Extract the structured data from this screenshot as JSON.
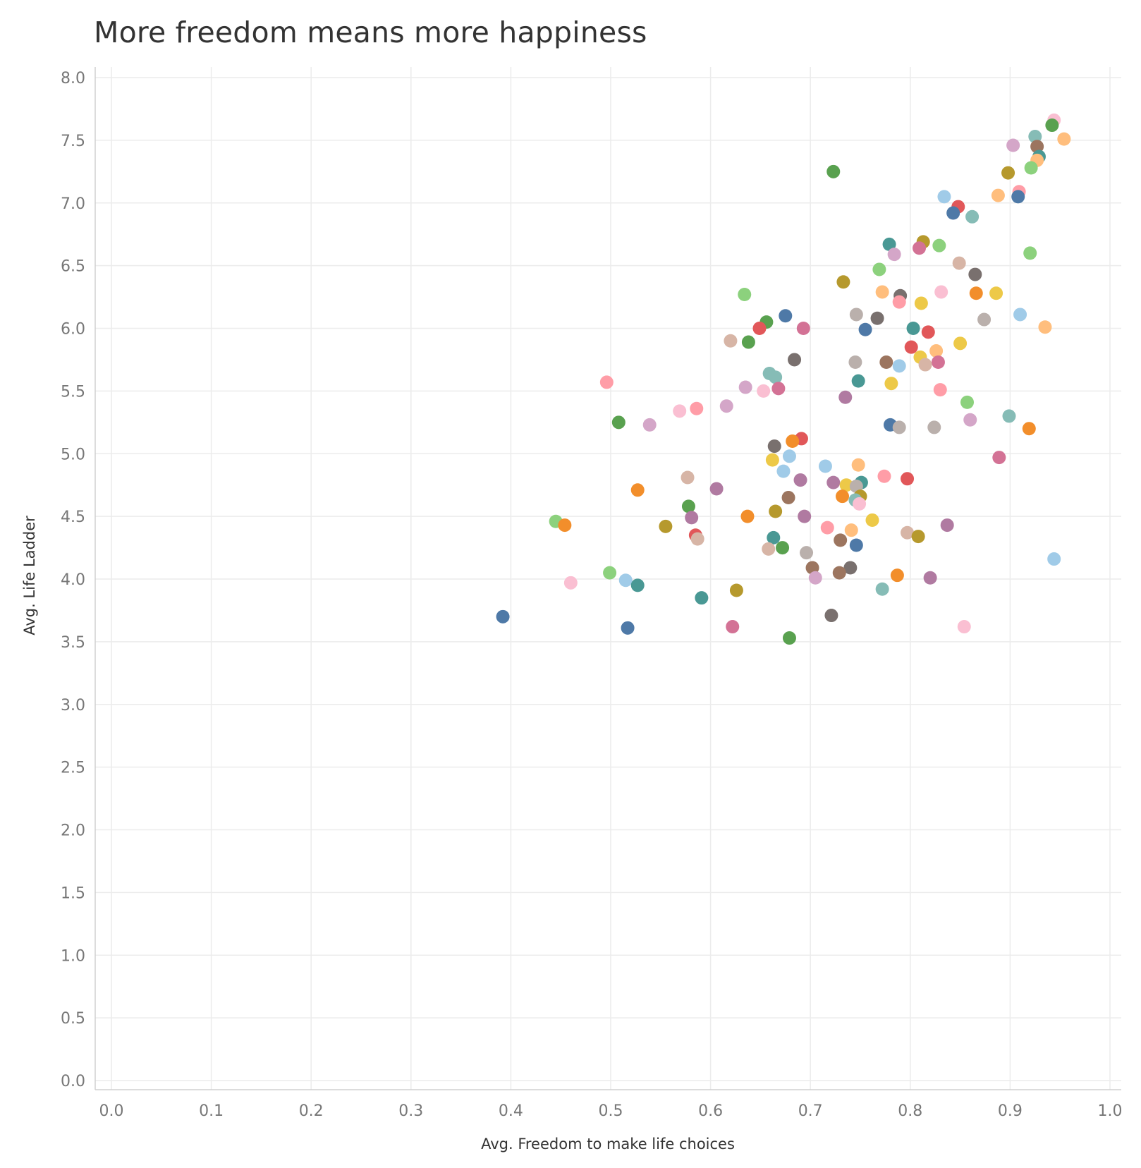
{
  "chart_data": {
    "type": "scatter",
    "title": "More freedom means more happiness",
    "xlabel": "Avg. Freedom to make life choices",
    "ylabel": "Avg. Life Ladder",
    "xlim": [
      0.0,
      1.0
    ],
    "ylim": [
      0.0,
      8.0
    ],
    "x_ticks": [
      "0.0",
      "0.1",
      "0.2",
      "0.3",
      "0.4",
      "0.5",
      "0.6",
      "0.7",
      "0.8",
      "0.9",
      "1.0"
    ],
    "y_ticks": [
      "0.0",
      "0.5",
      "1.0",
      "1.5",
      "2.0",
      "2.5",
      "3.0",
      "3.5",
      "4.0",
      "4.5",
      "5.0",
      "5.5",
      "6.0",
      "6.5",
      "7.0",
      "7.5",
      "8.0"
    ],
    "grid": true,
    "palette": [
      "#4e79a7",
      "#f28e2b",
      "#e15759",
      "#76b7b2",
      "#59a14f",
      "#edc948",
      "#b07aa1",
      "#ff9da7",
      "#9c755f",
      "#bab0ac",
      "#a0cbe8",
      "#ffbe7d",
      "#8cd17d",
      "#b6992d",
      "#499894",
      "#86bcb6",
      "#d37295",
      "#fabfd2",
      "#d4a6c8",
      "#79706e",
      "#d7b5a6"
    ],
    "points": [
      {
        "x": 0.944,
        "y": 7.66,
        "color": "#fabfd2"
      },
      {
        "x": 0.942,
        "y": 7.62,
        "color": "#59a14f"
      },
      {
        "x": 0.925,
        "y": 7.53,
        "color": "#86bcb6"
      },
      {
        "x": 0.954,
        "y": 7.51,
        "color": "#ffbe7d"
      },
      {
        "x": 0.903,
        "y": 7.46,
        "color": "#d4a6c8"
      },
      {
        "x": 0.927,
        "y": 7.45,
        "color": "#9c755f"
      },
      {
        "x": 0.929,
        "y": 7.37,
        "color": "#499894"
      },
      {
        "x": 0.927,
        "y": 7.34,
        "color": "#ffbe7d"
      },
      {
        "x": 0.921,
        "y": 7.28,
        "color": "#8cd17d"
      },
      {
        "x": 0.723,
        "y": 7.25,
        "color": "#59a14f"
      },
      {
        "x": 0.898,
        "y": 7.24,
        "color": "#b6992d"
      },
      {
        "x": 0.909,
        "y": 7.09,
        "color": "#ff9da7"
      },
      {
        "x": 0.888,
        "y": 7.06,
        "color": "#ffbe7d"
      },
      {
        "x": 0.908,
        "y": 7.05,
        "color": "#4e79a7"
      },
      {
        "x": 0.834,
        "y": 7.05,
        "color": "#a0cbe8"
      },
      {
        "x": 0.848,
        "y": 6.97,
        "color": "#e15759"
      },
      {
        "x": 0.843,
        "y": 6.92,
        "color": "#4e79a7"
      },
      {
        "x": 0.862,
        "y": 6.89,
        "color": "#86bcb6"
      },
      {
        "x": 0.813,
        "y": 6.69,
        "color": "#b6992d"
      },
      {
        "x": 0.779,
        "y": 6.67,
        "color": "#499894"
      },
      {
        "x": 0.829,
        "y": 6.66,
        "color": "#8cd17d"
      },
      {
        "x": 0.809,
        "y": 6.64,
        "color": "#d37295"
      },
      {
        "x": 0.784,
        "y": 6.59,
        "color": "#d4a6c8"
      },
      {
        "x": 0.92,
        "y": 6.6,
        "color": "#8cd17d"
      },
      {
        "x": 0.849,
        "y": 6.52,
        "color": "#d7b5a6"
      },
      {
        "x": 0.769,
        "y": 6.47,
        "color": "#8cd17d"
      },
      {
        "x": 0.865,
        "y": 6.43,
        "color": "#79706e"
      },
      {
        "x": 0.733,
        "y": 6.37,
        "color": "#b6992d"
      },
      {
        "x": 0.772,
        "y": 6.29,
        "color": "#ffbe7d"
      },
      {
        "x": 0.831,
        "y": 6.29,
        "color": "#fabfd2"
      },
      {
        "x": 0.886,
        "y": 6.28,
        "color": "#edc948"
      },
      {
        "x": 0.866,
        "y": 6.28,
        "color": "#f28e2b"
      },
      {
        "x": 0.634,
        "y": 6.27,
        "color": "#8cd17d"
      },
      {
        "x": 0.79,
        "y": 6.26,
        "color": "#79706e"
      },
      {
        "x": 0.811,
        "y": 6.2,
        "color": "#edc948"
      },
      {
        "x": 0.789,
        "y": 6.21,
        "color": "#ff9da7"
      },
      {
        "x": 0.746,
        "y": 6.11,
        "color": "#bab0ac"
      },
      {
        "x": 0.91,
        "y": 6.11,
        "color": "#a0cbe8"
      },
      {
        "x": 0.675,
        "y": 6.1,
        "color": "#4e79a7"
      },
      {
        "x": 0.767,
        "y": 6.08,
        "color": "#79706e"
      },
      {
        "x": 0.874,
        "y": 6.07,
        "color": "#bab0ac"
      },
      {
        "x": 0.656,
        "y": 6.05,
        "color": "#59a14f"
      },
      {
        "x": 0.935,
        "y": 6.01,
        "color": "#ffbe7d"
      },
      {
        "x": 0.693,
        "y": 6.0,
        "color": "#d37295"
      },
      {
        "x": 0.649,
        "y": 6.0,
        "color": "#e15759"
      },
      {
        "x": 0.803,
        "y": 6.0,
        "color": "#499894"
      },
      {
        "x": 0.755,
        "y": 5.99,
        "color": "#4e79a7"
      },
      {
        "x": 0.818,
        "y": 5.97,
        "color": "#e15759"
      },
      {
        "x": 0.62,
        "y": 5.9,
        "color": "#d7b5a6"
      },
      {
        "x": 0.638,
        "y": 5.89,
        "color": "#59a14f"
      },
      {
        "x": 0.85,
        "y": 5.88,
        "color": "#edc948"
      },
      {
        "x": 0.801,
        "y": 5.85,
        "color": "#e15759"
      },
      {
        "x": 0.826,
        "y": 5.82,
        "color": "#ffbe7d"
      },
      {
        "x": 0.81,
        "y": 5.77,
        "color": "#edc948"
      },
      {
        "x": 0.684,
        "y": 5.75,
        "color": "#79706e"
      },
      {
        "x": 0.745,
        "y": 5.73,
        "color": "#bab0ac"
      },
      {
        "x": 0.776,
        "y": 5.73,
        "color": "#9c755f"
      },
      {
        "x": 0.828,
        "y": 5.73,
        "color": "#d37295"
      },
      {
        "x": 0.815,
        "y": 5.71,
        "color": "#d7b5a6"
      },
      {
        "x": 0.789,
        "y": 5.7,
        "color": "#a0cbe8"
      },
      {
        "x": 0.659,
        "y": 5.64,
        "color": "#86bcb6"
      },
      {
        "x": 0.665,
        "y": 5.61,
        "color": "#86bcb6"
      },
      {
        "x": 0.748,
        "y": 5.58,
        "color": "#499894"
      },
      {
        "x": 0.496,
        "y": 5.57,
        "color": "#ff9da7"
      },
      {
        "x": 0.781,
        "y": 5.56,
        "color": "#edc948"
      },
      {
        "x": 0.635,
        "y": 5.53,
        "color": "#d4a6c8"
      },
      {
        "x": 0.668,
        "y": 5.52,
        "color": "#d37295"
      },
      {
        "x": 0.83,
        "y": 5.51,
        "color": "#ff9da7"
      },
      {
        "x": 0.653,
        "y": 5.5,
        "color": "#fabfd2"
      },
      {
        "x": 0.735,
        "y": 5.45,
        "color": "#b07aa1"
      },
      {
        "x": 0.857,
        "y": 5.41,
        "color": "#8cd17d"
      },
      {
        "x": 0.616,
        "y": 5.38,
        "color": "#d4a6c8"
      },
      {
        "x": 0.586,
        "y": 5.36,
        "color": "#ff9da7"
      },
      {
        "x": 0.569,
        "y": 5.34,
        "color": "#fabfd2"
      },
      {
        "x": 0.899,
        "y": 5.3,
        "color": "#86bcb6"
      },
      {
        "x": 0.86,
        "y": 5.27,
        "color": "#d4a6c8"
      },
      {
        "x": 0.508,
        "y": 5.25,
        "color": "#59a14f"
      },
      {
        "x": 0.539,
        "y": 5.23,
        "color": "#d4a6c8"
      },
      {
        "x": 0.78,
        "y": 5.23,
        "color": "#4e79a7"
      },
      {
        "x": 0.789,
        "y": 5.21,
        "color": "#bab0ac"
      },
      {
        "x": 0.824,
        "y": 5.21,
        "color": "#bab0ac"
      },
      {
        "x": 0.919,
        "y": 5.2,
        "color": "#f28e2b"
      },
      {
        "x": 0.691,
        "y": 5.12,
        "color": "#e15759"
      },
      {
        "x": 0.682,
        "y": 5.1,
        "color": "#f28e2b"
      },
      {
        "x": 0.664,
        "y": 5.06,
        "color": "#79706e"
      },
      {
        "x": 0.679,
        "y": 4.98,
        "color": "#a0cbe8"
      },
      {
        "x": 0.889,
        "y": 4.97,
        "color": "#d37295"
      },
      {
        "x": 0.662,
        "y": 4.95,
        "color": "#edc948"
      },
      {
        "x": 0.748,
        "y": 4.91,
        "color": "#ffbe7d"
      },
      {
        "x": 0.715,
        "y": 4.9,
        "color": "#a0cbe8"
      },
      {
        "x": 0.673,
        "y": 4.86,
        "color": "#a0cbe8"
      },
      {
        "x": 0.774,
        "y": 4.82,
        "color": "#ff9da7"
      },
      {
        "x": 0.577,
        "y": 4.81,
        "color": "#d7b5a6"
      },
      {
        "x": 0.797,
        "y": 4.8,
        "color": "#e15759"
      },
      {
        "x": 0.69,
        "y": 4.79,
        "color": "#b07aa1"
      },
      {
        "x": 0.723,
        "y": 4.77,
        "color": "#b07aa1"
      },
      {
        "x": 0.751,
        "y": 4.77,
        "color": "#499894"
      },
      {
        "x": 0.736,
        "y": 4.75,
        "color": "#edc948"
      },
      {
        "x": 0.746,
        "y": 4.74,
        "color": "#bab0ac"
      },
      {
        "x": 0.606,
        "y": 4.72,
        "color": "#b07aa1"
      },
      {
        "x": 0.527,
        "y": 4.71,
        "color": "#f28e2b"
      },
      {
        "x": 0.732,
        "y": 4.66,
        "color": "#f28e2b"
      },
      {
        "x": 0.75,
        "y": 4.66,
        "color": "#b6992d"
      },
      {
        "x": 0.678,
        "y": 4.65,
        "color": "#9c755f"
      },
      {
        "x": 0.745,
        "y": 4.63,
        "color": "#86bcb6"
      },
      {
        "x": 0.749,
        "y": 4.6,
        "color": "#fabfd2"
      },
      {
        "x": 0.578,
        "y": 4.58,
        "color": "#59a14f"
      },
      {
        "x": 0.665,
        "y": 4.54,
        "color": "#b6992d"
      },
      {
        "x": 0.637,
        "y": 4.5,
        "color": "#f28e2b"
      },
      {
        "x": 0.694,
        "y": 4.5,
        "color": "#b07aa1"
      },
      {
        "x": 0.581,
        "y": 4.49,
        "color": "#b07aa1"
      },
      {
        "x": 0.762,
        "y": 4.47,
        "color": "#edc948"
      },
      {
        "x": 0.445,
        "y": 4.46,
        "color": "#8cd17d"
      },
      {
        "x": 0.454,
        "y": 4.43,
        "color": "#f28e2b"
      },
      {
        "x": 0.837,
        "y": 4.43,
        "color": "#b07aa1"
      },
      {
        "x": 0.555,
        "y": 4.42,
        "color": "#b6992d"
      },
      {
        "x": 0.717,
        "y": 4.41,
        "color": "#ff9da7"
      },
      {
        "x": 0.741,
        "y": 4.39,
        "color": "#ffbe7d"
      },
      {
        "x": 0.797,
        "y": 4.37,
        "color": "#d7b5a6"
      },
      {
        "x": 0.585,
        "y": 4.35,
        "color": "#e15759"
      },
      {
        "x": 0.808,
        "y": 4.34,
        "color": "#b6992d"
      },
      {
        "x": 0.663,
        "y": 4.33,
        "color": "#499894"
      },
      {
        "x": 0.587,
        "y": 4.32,
        "color": "#d7b5a6"
      },
      {
        "x": 0.73,
        "y": 4.31,
        "color": "#9c755f"
      },
      {
        "x": 0.746,
        "y": 4.27,
        "color": "#4e79a7"
      },
      {
        "x": 0.672,
        "y": 4.25,
        "color": "#59a14f"
      },
      {
        "x": 0.658,
        "y": 4.24,
        "color": "#d7b5a6"
      },
      {
        "x": 0.696,
        "y": 4.21,
        "color": "#bab0ac"
      },
      {
        "x": 0.944,
        "y": 4.16,
        "color": "#a0cbe8"
      },
      {
        "x": 0.702,
        "y": 4.09,
        "color": "#9c755f"
      },
      {
        "x": 0.74,
        "y": 4.09,
        "color": "#79706e"
      },
      {
        "x": 0.729,
        "y": 4.05,
        "color": "#9c755f"
      },
      {
        "x": 0.499,
        "y": 4.05,
        "color": "#8cd17d"
      },
      {
        "x": 0.787,
        "y": 4.03,
        "color": "#f28e2b"
      },
      {
        "x": 0.705,
        "y": 4.01,
        "color": "#d4a6c8"
      },
      {
        "x": 0.82,
        "y": 4.01,
        "color": "#b07aa1"
      },
      {
        "x": 0.515,
        "y": 3.99,
        "color": "#a0cbe8"
      },
      {
        "x": 0.46,
        "y": 3.97,
        "color": "#fabfd2"
      },
      {
        "x": 0.527,
        "y": 3.95,
        "color": "#499894"
      },
      {
        "x": 0.772,
        "y": 3.92,
        "color": "#86bcb6"
      },
      {
        "x": 0.626,
        "y": 3.91,
        "color": "#b6992d"
      },
      {
        "x": 0.591,
        "y": 3.85,
        "color": "#499894"
      },
      {
        "x": 0.721,
        "y": 3.71,
        "color": "#79706e"
      },
      {
        "x": 0.392,
        "y": 3.7,
        "color": "#4e79a7"
      },
      {
        "x": 0.622,
        "y": 3.62,
        "color": "#d37295"
      },
      {
        "x": 0.854,
        "y": 3.62,
        "color": "#fabfd2"
      },
      {
        "x": 0.517,
        "y": 3.61,
        "color": "#4e79a7"
      },
      {
        "x": 0.679,
        "y": 3.53,
        "color": "#59a14f"
      }
    ]
  }
}
